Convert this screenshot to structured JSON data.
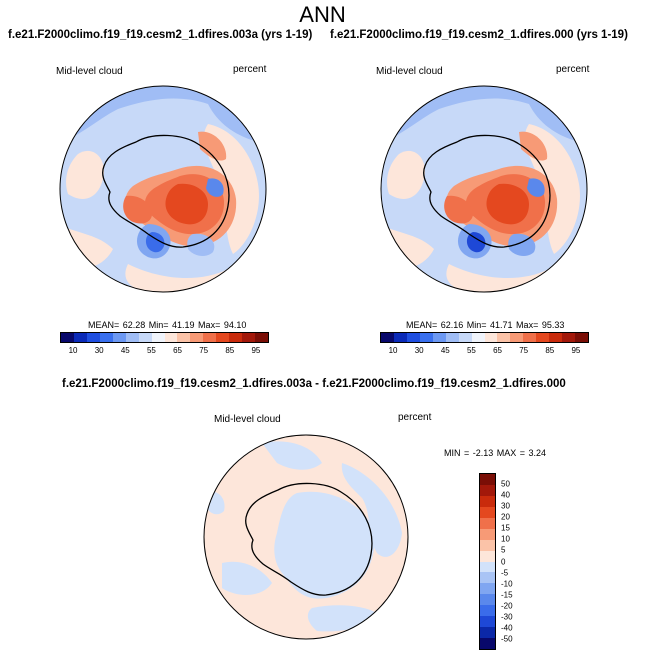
{
  "page": {
    "title": "ANN"
  },
  "panels": [
    {
      "case": "f.e21.F2000climo.f19_f19.cesm2_1.dfires.003a (yrs 1-19)",
      "variable": "Mid-level cloud",
      "units": "percent",
      "stats": "MEAN=  62.28  Min=  41.19  Max=  94.10",
      "mean": 62.28,
      "min": 41.19,
      "max": 94.1
    },
    {
      "case": "f.e21.F2000climo.f19_f19.cesm2_1.dfires.000 (yrs 1-19)",
      "variable": "Mid-level cloud",
      "units": "percent",
      "stats": "MEAN=  62.16  Min=  41.71  Max=  95.33",
      "mean": 62.16,
      "min": 41.71,
      "max": 95.33
    },
    {
      "case": "f.e21.F2000climo.f19_f19.cesm2_1.dfires.003a - f.e21.F2000climo.f19_f19.cesm2_1.dfires.000",
      "variable": "Mid-level cloud",
      "units": "percent",
      "stats": "MIN =  -2.13 MAX =   3.24",
      "min": -2.13,
      "max": 3.24
    }
  ],
  "colorbars": {
    "absolute": {
      "tick_labels": [
        "10",
        "30",
        "45",
        "55",
        "65",
        "75",
        "85",
        "95"
      ],
      "colors": [
        "#08086b",
        "#0b2ab8",
        "#1f4ee0",
        "#3a70ee",
        "#6c98f2",
        "#a0bdf5",
        "#c7d9f8",
        "#f0f4fb",
        "#fde6da",
        "#fbc3a8",
        "#f79a76",
        "#f0704a",
        "#e4481f",
        "#c92b0c",
        "#a2180a",
        "#7a0e06"
      ]
    },
    "difference": {
      "tick_labels": [
        "50",
        "40",
        "30",
        "20",
        "15",
        "10",
        "5",
        "0",
        "-5",
        "-10",
        "-15",
        "-20",
        "-30",
        "-40",
        "-50"
      ],
      "colors": [
        "#7a0e06",
        "#a2180a",
        "#c92b0c",
        "#e4481f",
        "#f0704a",
        "#f79a76",
        "#fbc3a8",
        "#fde6da",
        "#d2e2fa",
        "#a9c4f5",
        "#80a6f1",
        "#5a88ec",
        "#3a6cea",
        "#1e48d6",
        "#0b28a8",
        "#08086b"
      ]
    }
  }
}
